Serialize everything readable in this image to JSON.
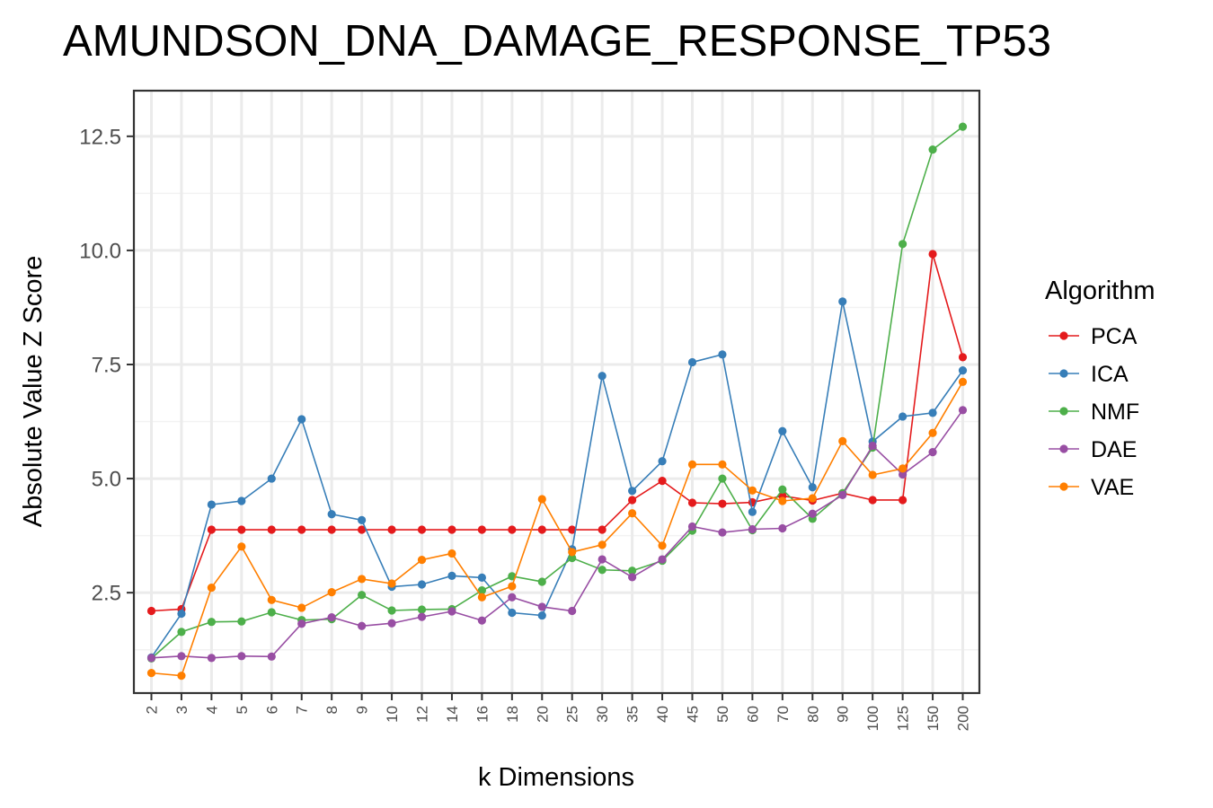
{
  "chart_data": {
    "type": "line",
    "title": "AMUNDSON_DNA_DAMAGE_RESPONSE_TP53",
    "xlabel": "k Dimensions",
    "ylabel": "Absolute Value Z Score",
    "categories": [
      "2",
      "3",
      "4",
      "5",
      "6",
      "7",
      "8",
      "9",
      "10",
      "12",
      "14",
      "16",
      "18",
      "20",
      "25",
      "30",
      "35",
      "40",
      "45",
      "50",
      "60",
      "70",
      "80",
      "90",
      "100",
      "125",
      "150",
      "200"
    ],
    "ylim": [
      0.3,
      13.5
    ],
    "yticks": [
      2.5,
      5.0,
      7.5,
      10.0,
      12.5
    ],
    "ytick_labels": [
      "2.5",
      "5.0",
      "7.5",
      "10.0",
      "12.5"
    ],
    "grid": true,
    "legend": {
      "title": "Algorithm",
      "position": "right"
    },
    "series": [
      {
        "name": "PCA",
        "color": "#e41a1c",
        "values": [
          2.1,
          2.14,
          3.88,
          3.88,
          3.88,
          3.88,
          3.88,
          3.88,
          3.88,
          3.88,
          3.88,
          3.88,
          3.88,
          3.88,
          3.88,
          3.88,
          4.53,
          4.95,
          4.47,
          4.45,
          4.48,
          4.62,
          4.52,
          4.68,
          4.53,
          4.53,
          9.92,
          7.66
        ]
      },
      {
        "name": "ICA",
        "color": "#377eb8",
        "values": [
          1.08,
          2.04,
          4.43,
          4.51,
          5.0,
          6.3,
          4.22,
          4.09,
          2.63,
          2.68,
          2.87,
          2.83,
          2.06,
          2.0,
          3.45,
          7.25,
          4.73,
          5.38,
          7.55,
          7.72,
          4.27,
          6.04,
          4.81,
          8.88,
          5.81,
          6.36,
          6.44,
          7.37
        ]
      },
      {
        "name": "NMF",
        "color": "#4daf4a",
        "values": [
          1.06,
          1.64,
          1.86,
          1.87,
          2.07,
          1.9,
          1.92,
          2.45,
          2.11,
          2.13,
          2.14,
          2.55,
          2.86,
          2.74,
          3.26,
          3.0,
          2.98,
          3.2,
          3.86,
          5.0,
          3.87,
          4.76,
          4.12,
          4.68,
          5.68,
          10.14,
          12.21,
          12.71
        ]
      },
      {
        "name": "DAE",
        "color": "#984ea3",
        "values": [
          1.07,
          1.11,
          1.07,
          1.11,
          1.1,
          1.82,
          1.96,
          1.77,
          1.83,
          1.97,
          2.09,
          1.89,
          2.4,
          2.19,
          2.1,
          3.23,
          2.84,
          3.23,
          3.95,
          3.82,
          3.89,
          3.91,
          4.23,
          4.64,
          5.72,
          5.09,
          5.58,
          6.5
        ]
      },
      {
        "name": "VAE",
        "color": "#ff7f00",
        "values": [
          0.74,
          0.68,
          2.61,
          3.51,
          2.34,
          2.17,
          2.51,
          2.8,
          2.7,
          3.22,
          3.36,
          2.4,
          2.64,
          4.55,
          3.39,
          3.55,
          4.24,
          3.53,
          5.31,
          5.31,
          4.74,
          4.51,
          4.57,
          5.82,
          5.08,
          5.22,
          6.0,
          7.12
        ]
      }
    ]
  }
}
